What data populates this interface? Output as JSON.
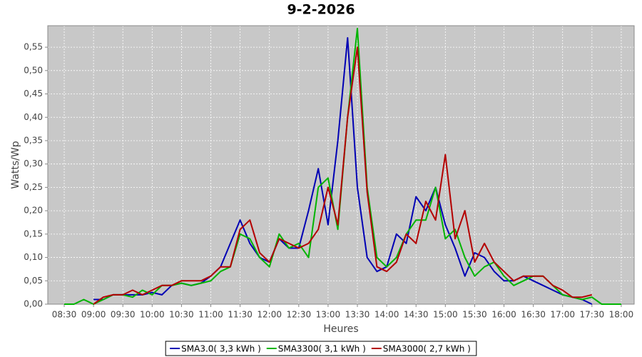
{
  "chart_data": {
    "type": "line",
    "title": "9-2-2026",
    "x_label": "Heures",
    "y_label": "Watts/Wp",
    "x": [
      8.5,
      8.667,
      8.833,
      9,
      9.167,
      9.333,
      9.5,
      9.667,
      9.833,
      10,
      10.167,
      10.333,
      10.5,
      10.667,
      10.833,
      11,
      11.167,
      11.333,
      11.5,
      11.667,
      11.833,
      12,
      12.167,
      12.333,
      12.5,
      12.667,
      12.833,
      13,
      13.167,
      13.333,
      13.5,
      13.667,
      13.833,
      14,
      14.167,
      14.333,
      14.5,
      14.667,
      14.833,
      15,
      15.167,
      15.333,
      15.5,
      15.667,
      15.833,
      16,
      16.167,
      16.333,
      16.5,
      16.667,
      16.833,
      17,
      17.167,
      17.333,
      17.5,
      17.667,
      17.833,
      18
    ],
    "xlim": [
      8.22,
      18.22
    ],
    "xticks": [
      {
        "value": 8.5,
        "label": "08:30"
      },
      {
        "value": 9,
        "label": "09:00"
      },
      {
        "value": 9.5,
        "label": "09:30"
      },
      {
        "value": 10,
        "label": "10:00"
      },
      {
        "value": 10.5,
        "label": "10:30"
      },
      {
        "value": 11,
        "label": "11:00"
      },
      {
        "value": 11.5,
        "label": "11:30"
      },
      {
        "value": 12,
        "label": "12:00"
      },
      {
        "value": 12.5,
        "label": "12:30"
      },
      {
        "value": 13,
        "label": "13:00"
      },
      {
        "value": 13.5,
        "label": "13:30"
      },
      {
        "value": 14,
        "label": "14:00"
      },
      {
        "value": 14.5,
        "label": "14:30"
      },
      {
        "value": 15,
        "label": "15:00"
      },
      {
        "value": 15.5,
        "label": "15:30"
      },
      {
        "value": 16,
        "label": "16:00"
      },
      {
        "value": 16.5,
        "label": "16:30"
      },
      {
        "value": 17,
        "label": "17:00"
      },
      {
        "value": 17.5,
        "label": "17:30"
      },
      {
        "value": 18,
        "label": "18:00"
      }
    ],
    "ylim": [
      0,
      0.596
    ],
    "yticks": [
      {
        "value": 0,
        "label": "0,00"
      },
      {
        "value": 0.05,
        "label": "0,05"
      },
      {
        "value": 0.1,
        "label": "0,10"
      },
      {
        "value": 0.15,
        "label": "0,15"
      },
      {
        "value": 0.2,
        "label": "0,20"
      },
      {
        "value": 0.25,
        "label": "0,25"
      },
      {
        "value": 0.3,
        "label": "0,30"
      },
      {
        "value": 0.35,
        "label": "0,35"
      },
      {
        "value": 0.4,
        "label": "0,40"
      },
      {
        "value": 0.45,
        "label": "0,45"
      },
      {
        "value": 0.5,
        "label": "0,50"
      },
      {
        "value": 0.55,
        "label": "0,55"
      }
    ],
    "grid": true,
    "series": [
      {
        "name": "SMA3.0( 3,3 kWh )",
        "color": "#0000b4",
        "values": [
          null,
          null,
          null,
          0.01,
          0.01,
          0.02,
          0.02,
          0.02,
          0.02,
          0.025,
          0.02,
          0.04,
          0.045,
          0.04,
          0.045,
          0.06,
          0.08,
          0.13,
          0.18,
          0.13,
          0.1,
          0.09,
          0.14,
          0.12,
          0.12,
          0.2,
          0.29,
          0.17,
          0.35,
          0.57,
          0.25,
          0.1,
          0.07,
          0.08,
          0.15,
          0.13,
          0.23,
          0.2,
          0.25,
          0.17,
          0.12,
          0.06,
          0.11,
          0.1,
          0.07,
          0.05,
          0.05,
          0.06,
          0.05,
          0.04,
          0.03,
          0.02,
          0.015,
          0.01,
          0,
          null,
          null,
          null
        ]
      },
      {
        "name": "SMA3300( 3,1 kWh )",
        "color": "#00b400",
        "values": [
          0,
          0,
          0.01,
          0,
          0.01,
          0.02,
          0.02,
          0.015,
          0.03,
          0.02,
          0.04,
          0.04,
          0.045,
          0.04,
          0.045,
          0.05,
          0.07,
          0.08,
          0.15,
          0.14,
          0.1,
          0.08,
          0.15,
          0.12,
          0.13,
          0.1,
          0.25,
          0.27,
          0.16,
          0.4,
          0.59,
          0.25,
          0.1,
          0.08,
          0.1,
          0.15,
          0.18,
          0.18,
          0.25,
          0.14,
          0.16,
          0.1,
          0.06,
          0.08,
          0.09,
          0.06,
          0.04,
          0.05,
          0.06,
          0.06,
          0.04,
          0.02,
          0.015,
          0.01,
          0.015,
          0,
          0,
          0
        ]
      },
      {
        "name": "SMA3000( 2,7 kWh )",
        "color": "#b40000",
        "values": [
          null,
          null,
          null,
          0,
          0.015,
          0.02,
          0.02,
          0.03,
          0.02,
          0.03,
          0.04,
          0.04,
          0.05,
          0.05,
          0.05,
          0.06,
          0.08,
          0.08,
          0.16,
          0.18,
          0.11,
          0.09,
          0.14,
          0.13,
          0.12,
          0.13,
          0.16,
          0.25,
          0.17,
          0.4,
          0.55,
          0.24,
          0.08,
          0.07,
          0.09,
          0.15,
          0.13,
          0.22,
          0.18,
          0.32,
          0.14,
          0.2,
          0.09,
          0.13,
          0.09,
          0.07,
          0.05,
          0.06,
          0.06,
          0.06,
          0.04,
          0.03,
          0.015,
          0.015,
          0.02,
          null,
          null,
          null
        ]
      }
    ]
  }
}
